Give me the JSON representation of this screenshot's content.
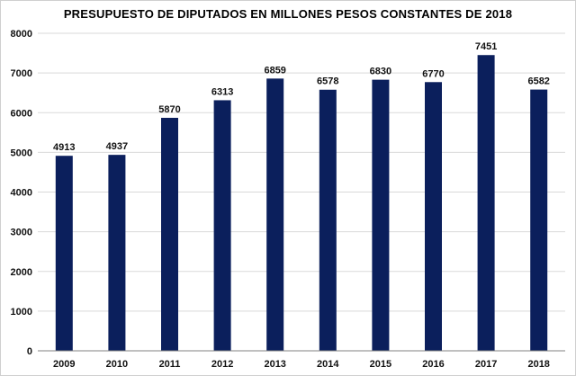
{
  "chart_data": {
    "type": "bar",
    "title": "PRESUPUESTO  DE DIPUTADOS  EN MILLONES  PESOS CONSTANTES  DE 2018",
    "xlabel": "",
    "ylabel": "",
    "categories": [
      "2009",
      "2010",
      "2011",
      "2012",
      "2013",
      "2014",
      "2015",
      "2016",
      "2017",
      "2018"
    ],
    "values": [
      4913,
      4937,
      5870,
      6313,
      6859,
      6578,
      6830,
      6770,
      7451,
      6582
    ],
    "data_labels": [
      "4913",
      "4937",
      "5870",
      "6313",
      "6859",
      "6578",
      "6830",
      "6770",
      "7451",
      "6582"
    ],
    "ylim": [
      0,
      8000
    ],
    "yticks": [
      "0",
      "1000",
      "2000",
      "3000",
      "4000",
      "5000",
      "6000",
      "7000",
      "8000"
    ],
    "grid": true,
    "legend": "none",
    "bar_color": "#0b1f5c",
    "grid_color": "#d9d9d9",
    "axis_color": "#808080"
  }
}
